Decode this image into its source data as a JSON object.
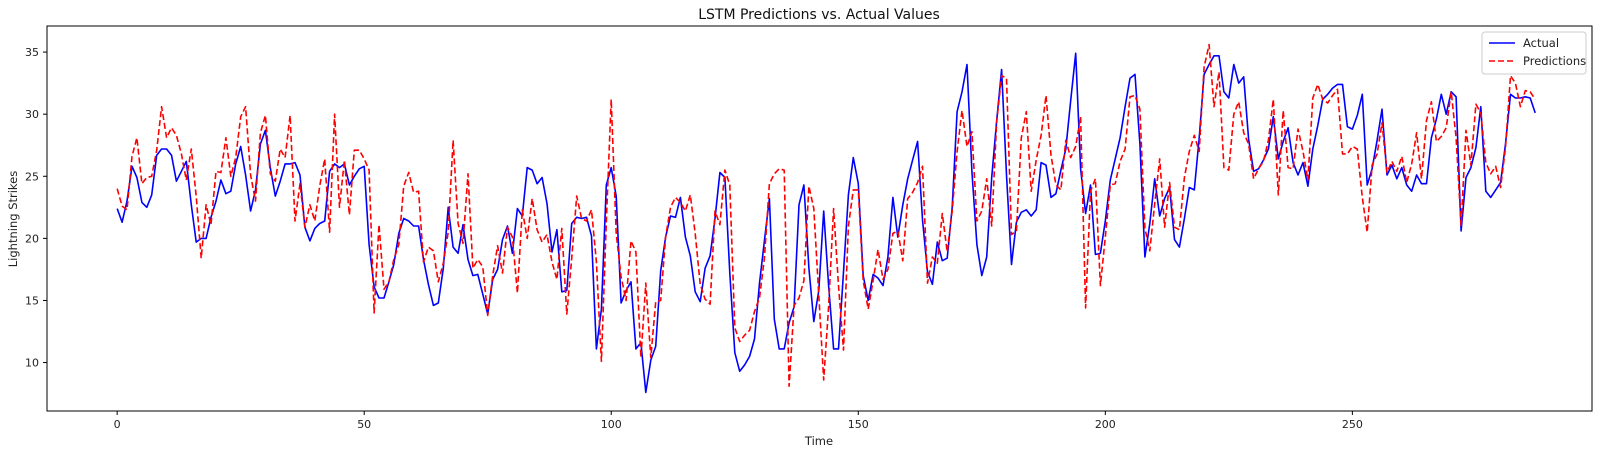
{
  "chart_data": {
    "type": "line",
    "title": "LSTM Predictions vs. Actual Values",
    "xlabel": "Time",
    "ylabel": "Lightning Strikes",
    "xlim": [
      -14.2,
      298.5
    ],
    "ylim": [
      6.1,
      37.1
    ],
    "x_ticks": [
      0,
      50,
      100,
      150,
      200,
      250
    ],
    "y_ticks": [
      10,
      15,
      20,
      25,
      30,
      35
    ],
    "legend_position": "top-right",
    "grid": false,
    "series": [
      {
        "name": "Actual",
        "color": "#0000ff",
        "style": "solid",
        "values": [
          22.4,
          21.3,
          23.0,
          25.8,
          24.9,
          22.9,
          22.5,
          23.5,
          26.7,
          27.2,
          27.2,
          26.7,
          24.6,
          25.4,
          26.2,
          22.7,
          19.7,
          20.0,
          20.0,
          21.7,
          23.0,
          24.7,
          23.6,
          23.8,
          26.0,
          27.4,
          25.1,
          22.2,
          23.9,
          27.6,
          28.7,
          25.7,
          23.4,
          24.6,
          26.0,
          26.0,
          26.1,
          25.1,
          20.9,
          19.8,
          20.8,
          21.2,
          21.4,
          25.4,
          26.0,
          25.7,
          26.0,
          24.3,
          25.0,
          25.6,
          25.8,
          19.5,
          16.1,
          15.2,
          15.2,
          16.5,
          17.9,
          20.4,
          21.6,
          21.4,
          21.0,
          21.0,
          18.3,
          16.3,
          14.6,
          14.8,
          17.6,
          22.5,
          19.3,
          18.8,
          21.1,
          18.3,
          17.0,
          17.1,
          15.5,
          13.9,
          16.7,
          17.5,
          19.9,
          21.0,
          18.8,
          22.4,
          21.8,
          25.7,
          25.5,
          24.4,
          24.9,
          22.8,
          18.9,
          20.7,
          15.7,
          15.8,
          21.2,
          21.7,
          21.6,
          21.7,
          20.2,
          11.1,
          14.3,
          24.3,
          25.7,
          23.4,
          14.8,
          15.8,
          16.5,
          11.1,
          11.6,
          7.6,
          10.2,
          11.3,
          17.4,
          20.1,
          21.8,
          21.7,
          23.3,
          20.1,
          18.6,
          15.7,
          14.9,
          17.6,
          18.6,
          21.6,
          25.3,
          24.9,
          17.2,
          10.8,
          9.3,
          9.8,
          10.5,
          11.9,
          16.4,
          19.8,
          23.2,
          13.5,
          11.1,
          11.1,
          13.2,
          14.5,
          22.7,
          24.3,
          17.6,
          13.3,
          15.8,
          22.2,
          16.2,
          11.1,
          11.1,
          17.3,
          23.5,
          26.5,
          24.4,
          17.0,
          15.0,
          17.1,
          16.8,
          16.2,
          18.5,
          23.3,
          20.1,
          22.7,
          24.8,
          26.3,
          27.8,
          21.5,
          17.3,
          16.3,
          19.7,
          18.2,
          18.4,
          22.5,
          30.2,
          31.8,
          34.0,
          25.4,
          19.5,
          17.0,
          18.5,
          24.9,
          29.4,
          33.6,
          25.1,
          17.9,
          21.3,
          22.1,
          22.3,
          21.8,
          22.3,
          26.1,
          25.9,
          23.3,
          23.6,
          25.5,
          27.2,
          31.1,
          34.9,
          25.6,
          22.0,
          24.3,
          18.7,
          18.8,
          21.4,
          24.7,
          26.4,
          28.1,
          30.6,
          32.9,
          33.2,
          27.6,
          18.5,
          21.2,
          24.8,
          21.8,
          23.2,
          24.1,
          19.9,
          19.3,
          21.6,
          24.1,
          23.9,
          28.1,
          33.2,
          34.0,
          34.7,
          34.7,
          31.8,
          31.3,
          34.0,
          32.5,
          33.0,
          28.0,
          25.4,
          25.6,
          26.3,
          27.2,
          29.8,
          26.4,
          27.8,
          28.9,
          26.1,
          25.1,
          26.1,
          24.2,
          27.2,
          29.1,
          31.2,
          31.6,
          32.1,
          32.4,
          32.4,
          29.0,
          28.8,
          29.9,
          31.6,
          24.3,
          25.6,
          27.9,
          30.4,
          25.1,
          25.9,
          24.8,
          25.7,
          24.3,
          23.8,
          25.1,
          24.4,
          24.4,
          28.1,
          29.6,
          31.6,
          30.0,
          31.8,
          31.4,
          20.6,
          24.9,
          25.7,
          27.3,
          30.6,
          23.8,
          23.3,
          23.9,
          24.5,
          27.6,
          31.6,
          31.3,
          31.3,
          31.4,
          31.3,
          30.1
        ]
      },
      {
        "name": "Predictions",
        "color": "#ff0000",
        "style": "dashed",
        "values": [
          24.0,
          22.6,
          22.3,
          26.6,
          28.1,
          24.4,
          24.9,
          25.0,
          27.1,
          30.6,
          28.1,
          28.9,
          28.3,
          26.8,
          24.7,
          27.2,
          23.4,
          18.4,
          22.7,
          21.1,
          25.4,
          25.3,
          28.1,
          25.0,
          26.5,
          29.8,
          30.6,
          25.1,
          23.0,
          28.5,
          29.9,
          25.2,
          24.6,
          27.2,
          26.5,
          29.9,
          21.4,
          24.4,
          20.9,
          22.7,
          21.4,
          24.2,
          26.4,
          20.5,
          30.0,
          22.5,
          26.3,
          21.9,
          27.1,
          27.1,
          26.4,
          25.5,
          14.0,
          21.1,
          15.9,
          16.5,
          18.3,
          19.5,
          24.2,
          25.3,
          23.7,
          23.8,
          18.1,
          19.3,
          19.0,
          16.5,
          18.0,
          20.5,
          27.9,
          21.2,
          19.6,
          25.2,
          17.6,
          18.3,
          17.7,
          13.8,
          17.0,
          19.4,
          17.2,
          20.9,
          20.1,
          15.6,
          22.3,
          20.0,
          23.2,
          20.7,
          19.7,
          20.3,
          18.1,
          16.7,
          20.8,
          13.9,
          18.4,
          23.4,
          21.6,
          21.4,
          22.3,
          18.1,
          10.1,
          21.3,
          31.2,
          20.4,
          16.9,
          15.0,
          19.8,
          18.9,
          10.4,
          16.4,
          10.4,
          14.9,
          15.0,
          20.1,
          22.5,
          23.3,
          22.9,
          22.2,
          23.5,
          20.4,
          16.3,
          15.1,
          14.7,
          22.2,
          21.1,
          25.5,
          24.3,
          12.8,
          11.7,
          12.2,
          12.6,
          14.1,
          15.2,
          18.4,
          24.4,
          25.2,
          25.6,
          25.5,
          8.1,
          14.6,
          15.2,
          16.6,
          24.2,
          22.4,
          15.4,
          8.6,
          14.5,
          22.4,
          16.2,
          11.0,
          21.0,
          23.9,
          23.9,
          16.6,
          14.3,
          16.6,
          19.1,
          16.7,
          17.5,
          20.4,
          20.6,
          18.2,
          23.2,
          23.7,
          24.5,
          25.8,
          16.4,
          18.5,
          18.0,
          22.0,
          18.9,
          22.2,
          27.0,
          30.3,
          27.4,
          28.6,
          21.4,
          22.2,
          24.8,
          21.0,
          29.3,
          33.1,
          32.9,
          20.3,
          20.6,
          28.1,
          30.2,
          23.8,
          26.3,
          28.3,
          31.5,
          26.7,
          24.3,
          23.9,
          27.9,
          26.5,
          27.4,
          29.8,
          14.4,
          23.8,
          24.8,
          16.2,
          20.1,
          24.3,
          24.4,
          26.2,
          27.2,
          31.4,
          31.5,
          30.4,
          20.8,
          19.0,
          22.8,
          26.4,
          20.9,
          24.5,
          20.9,
          20.7,
          24.9,
          27.0,
          28.3,
          27.0,
          33.8,
          35.6,
          30.6,
          33.4,
          25.7,
          25.5,
          30.0,
          31.0,
          28.5,
          27.6,
          24.8,
          25.6,
          26.2,
          27.9,
          31.2,
          23.5,
          30.3,
          25.7,
          25.6,
          28.8,
          27.0,
          24.7,
          31.3,
          32.4,
          31.2,
          30.9,
          31.5,
          32.0,
          26.8,
          26.8,
          27.4,
          27.2,
          23.3,
          20.5,
          25.9,
          26.8,
          29.3,
          25.3,
          26.2,
          25.4,
          26.6,
          24.5,
          26.0,
          28.5,
          24.8,
          29.5,
          31.0,
          27.8,
          28.2,
          28.9,
          31.8,
          28.1,
          21.0,
          28.7,
          25.9,
          30.8,
          30.1,
          26.1,
          25.2,
          25.8,
          24.1,
          27.3,
          33.1,
          32.5,
          30.6,
          31.9,
          31.8,
          31.2
        ]
      }
    ]
  }
}
